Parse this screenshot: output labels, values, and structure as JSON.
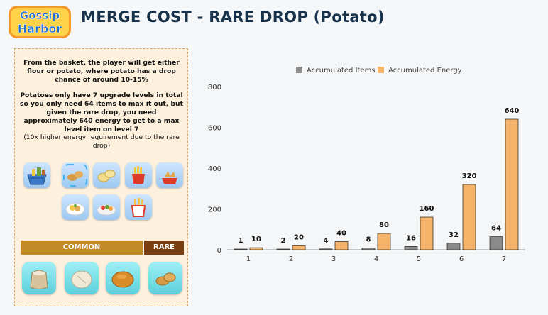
{
  "header": {
    "logo_line1": "Gossip",
    "logo_line2": "Harbor",
    "title": "MERGE COST - RARE DROP (Potato)"
  },
  "info_panel": {
    "paragraph1": "From the basket, the player will get either flour or potato, where potato has a drop chance of around 10-15%",
    "paragraph2": "Potatoes only have 7 upgrade levels in total so you only need 64 items to max it out, but given the rare drop, you need approximately 640 energy to get to a max level item on level 7",
    "paragraph3": "(10x higher energy requirement due to the rare drop)",
    "chain_icons": [
      "basket-icon",
      "potatoes-icon",
      "potato-slices-icon",
      "fries-box-icon",
      "potato-wedges-icon",
      "potato-salad-icon",
      "veggie-plate-icon",
      "fries-bucket-icon"
    ],
    "common_label": "COMMON",
    "rare_label": "RARE",
    "drop_icons": [
      "flour-sack-icon",
      "dough-icon",
      "bread-bun-icon",
      "potato-icon"
    ]
  },
  "chart_data": {
    "type": "bar",
    "categories": [
      "1",
      "2",
      "3",
      "4",
      "5",
      "6",
      "7"
    ],
    "series": [
      {
        "name": "Accumulated Items",
        "values": [
          1,
          2,
          4,
          8,
          16,
          32,
          64
        ],
        "color": "#8a8a8a"
      },
      {
        "name": "Accumulated Energy",
        "values": [
          10,
          20,
          40,
          80,
          160,
          320,
          640
        ],
        "color": "#f6b46b"
      }
    ],
    "ylim": [
      0,
      800
    ],
    "yticks": [
      0,
      200,
      400,
      600,
      800
    ],
    "legend": "top",
    "grid": false
  }
}
